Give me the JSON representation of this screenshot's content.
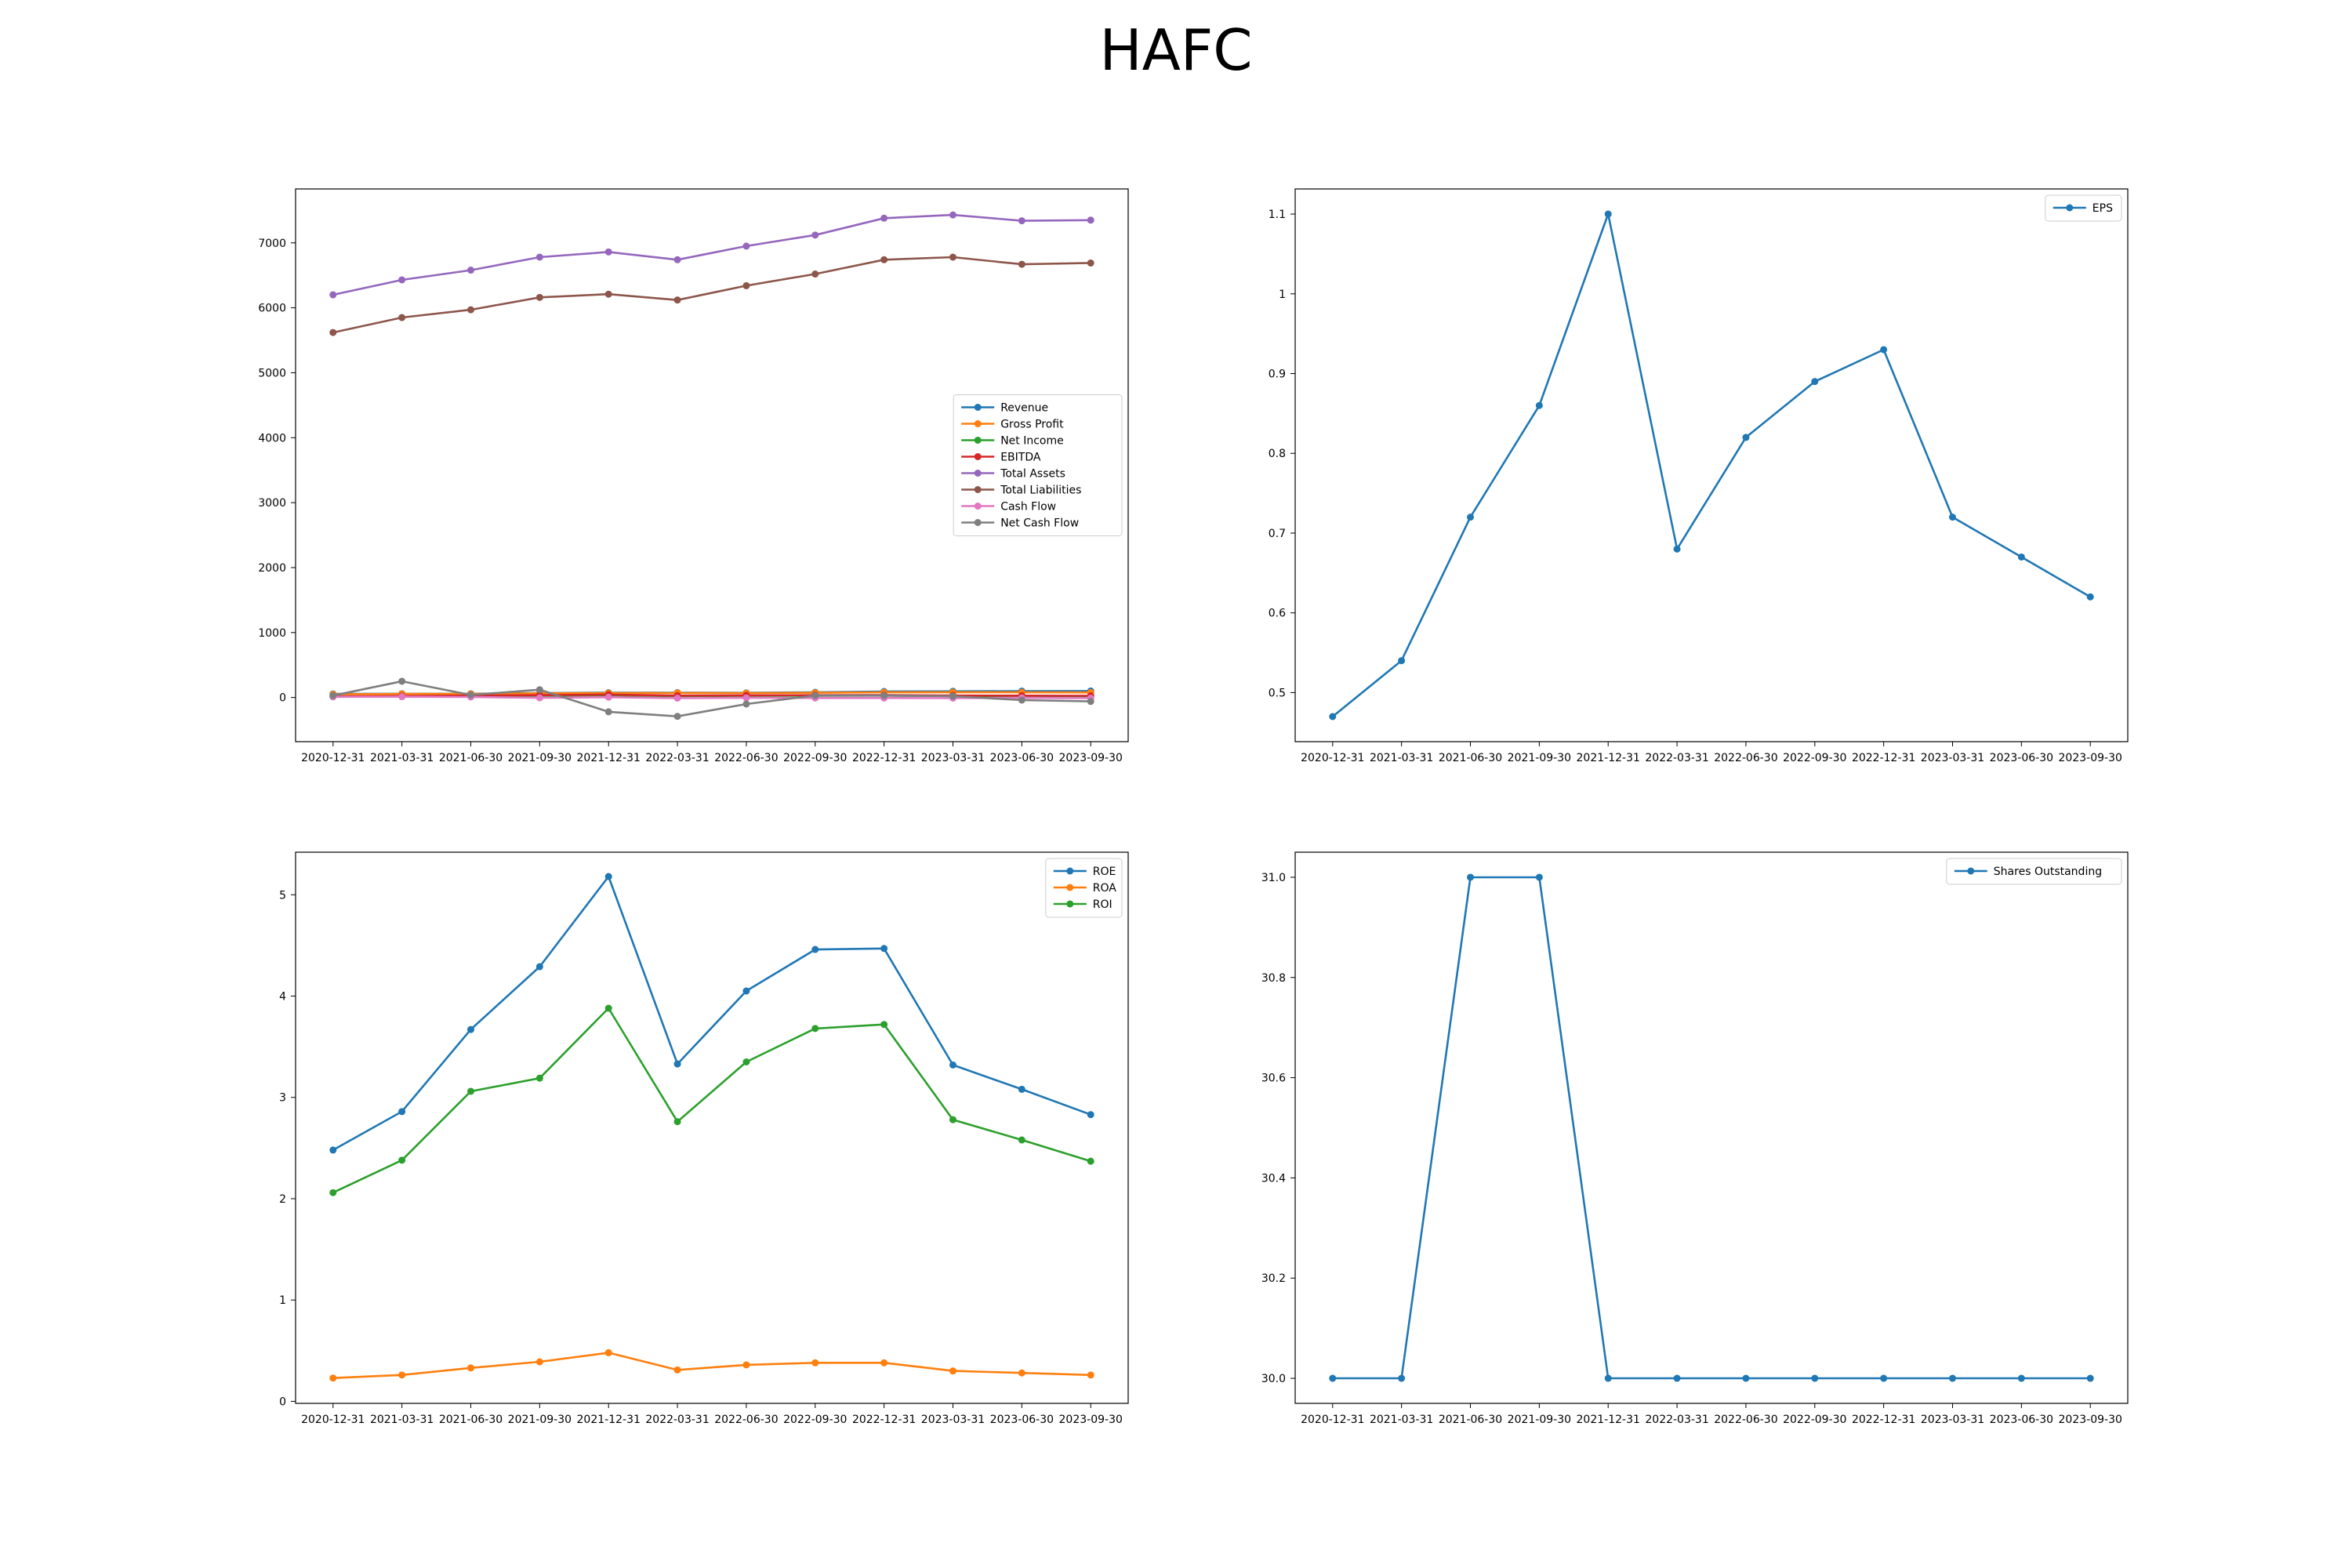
{
  "suptitle": "HAFC",
  "colors": {
    "blue": "#1f77b4",
    "orange": "#ff7f0e",
    "green": "#2ca02c",
    "red": "#d62728",
    "purple": "#9467bd",
    "brown": "#8c564b",
    "pink": "#e377c2",
    "gray": "#7f7f7f"
  },
  "chart_data": [
    {
      "type": "line",
      "x": [
        "2020-12-31",
        "2021-03-31",
        "2021-06-30",
        "2021-09-30",
        "2021-12-31",
        "2022-03-31",
        "2022-06-30",
        "2022-09-30",
        "2022-12-31",
        "2023-03-31",
        "2023-06-30",
        "2023-09-30"
      ],
      "ylim": [
        -680,
        7830
      ],
      "yticks": [
        0,
        1000,
        2000,
        3000,
        4000,
        5000,
        6000,
        7000
      ],
      "legend": "center-right",
      "series": [
        {
          "name": "Revenue",
          "color": "#1f77b4",
          "values": [
            55,
            58,
            58,
            68,
            74,
            75,
            72,
            80,
            92,
            95,
            98,
            100
          ]
        },
        {
          "name": "Gross Profit",
          "color": "#ff7f0e",
          "values": [
            50,
            55,
            55,
            65,
            68,
            70,
            68,
            73,
            80,
            82,
            80,
            78
          ]
        },
        {
          "name": "Net Income",
          "color": "#2ca02c",
          "values": [
            14,
            16,
            22,
            26,
            33,
            20,
            25,
            27,
            28,
            22,
            20,
            19
          ]
        },
        {
          "name": "EBITDA",
          "color": "#d62728",
          "values": [
            20,
            22,
            30,
            36,
            45,
            28,
            33,
            36,
            37,
            30,
            28,
            26
          ]
        },
        {
          "name": "Total Assets",
          "color": "#9467bd",
          "values": [
            6200,
            6430,
            6580,
            6780,
            6860,
            6740,
            6950,
            7120,
            7380,
            7430,
            7340,
            7350
          ]
        },
        {
          "name": "Total Liabilities",
          "color": "#8c564b",
          "values": [
            5620,
            5850,
            5970,
            6160,
            6210,
            6120,
            6340,
            6520,
            6740,
            6780,
            6670,
            6690
          ]
        },
        {
          "name": "Cash Flow",
          "color": "#e377c2",
          "values": [
            10,
            12,
            8,
            -5,
            5,
            -10,
            -5,
            -8,
            -8,
            -10,
            -5,
            -10
          ]
        },
        {
          "name": "Net Cash Flow",
          "color": "#7f7f7f",
          "values": [
            30,
            250,
            40,
            120,
            -220,
            -290,
            -100,
            30,
            30,
            20,
            -40,
            -60
          ]
        }
      ]
    },
    {
      "type": "line",
      "x": [
        "2020-12-31",
        "2021-03-31",
        "2021-06-30",
        "2021-09-30",
        "2021-12-31",
        "2022-03-31",
        "2022-06-30",
        "2022-09-30",
        "2022-12-31",
        "2023-03-31",
        "2023-06-30",
        "2023-09-30"
      ],
      "ylim": [
        0.4385,
        1.1315
      ],
      "yticks": [
        0.5,
        0.6,
        0.7,
        0.8,
        0.9,
        1.0,
        1.1
      ],
      "legend": "top-right",
      "series": [
        {
          "name": "EPS",
          "color": "#1f77b4",
          "values": [
            0.47,
            0.54,
            0.72,
            0.86,
            1.1,
            0.68,
            0.82,
            0.89,
            0.93,
            0.72,
            0.67,
            0.62
          ]
        }
      ]
    },
    {
      "type": "line",
      "x": [
        "2020-12-31",
        "2021-03-31",
        "2021-06-30",
        "2021-09-30",
        "2021-12-31",
        "2022-03-31",
        "2022-06-30",
        "2022-09-30",
        "2022-12-31",
        "2023-03-31",
        "2023-06-30",
        "2023-09-30"
      ],
      "ylim": [
        -0.02,
        5.42
      ],
      "yticks": [
        0,
        1,
        2,
        3,
        4,
        5
      ],
      "legend": "top-right",
      "series": [
        {
          "name": "ROE",
          "color": "#1f77b4",
          "values": [
            2.48,
            2.86,
            3.67,
            4.29,
            5.18,
            3.33,
            4.05,
            4.46,
            4.47,
            3.32,
            3.08,
            2.83
          ]
        },
        {
          "name": "ROA",
          "color": "#ff7f0e",
          "values": [
            0.23,
            0.26,
            0.33,
            0.39,
            0.48,
            0.31,
            0.36,
            0.38,
            0.38,
            0.3,
            0.28,
            0.26
          ]
        },
        {
          "name": "ROI",
          "color": "#2ca02c",
          "values": [
            2.06,
            2.38,
            3.06,
            3.19,
            3.88,
            2.76,
            3.35,
            3.68,
            3.72,
            2.78,
            2.58,
            2.37
          ]
        }
      ]
    },
    {
      "type": "line",
      "x": [
        "2020-12-31",
        "2021-03-31",
        "2021-06-30",
        "2021-09-30",
        "2021-12-31",
        "2022-03-31",
        "2022-06-30",
        "2022-09-30",
        "2022-12-31",
        "2023-03-31",
        "2023-06-30",
        "2023-09-30"
      ],
      "ylim": [
        29.95,
        31.05
      ],
      "yticks": [
        30.0,
        30.2,
        30.4,
        30.6,
        30.8,
        31.0
      ],
      "yformat": 1,
      "legend": "top-right",
      "series": [
        {
          "name": "Shares Outstanding",
          "color": "#1f77b4",
          "values": [
            30,
            30,
            31,
            31,
            30,
            30,
            30,
            30,
            30,
            30,
            30,
            30
          ]
        }
      ]
    }
  ]
}
